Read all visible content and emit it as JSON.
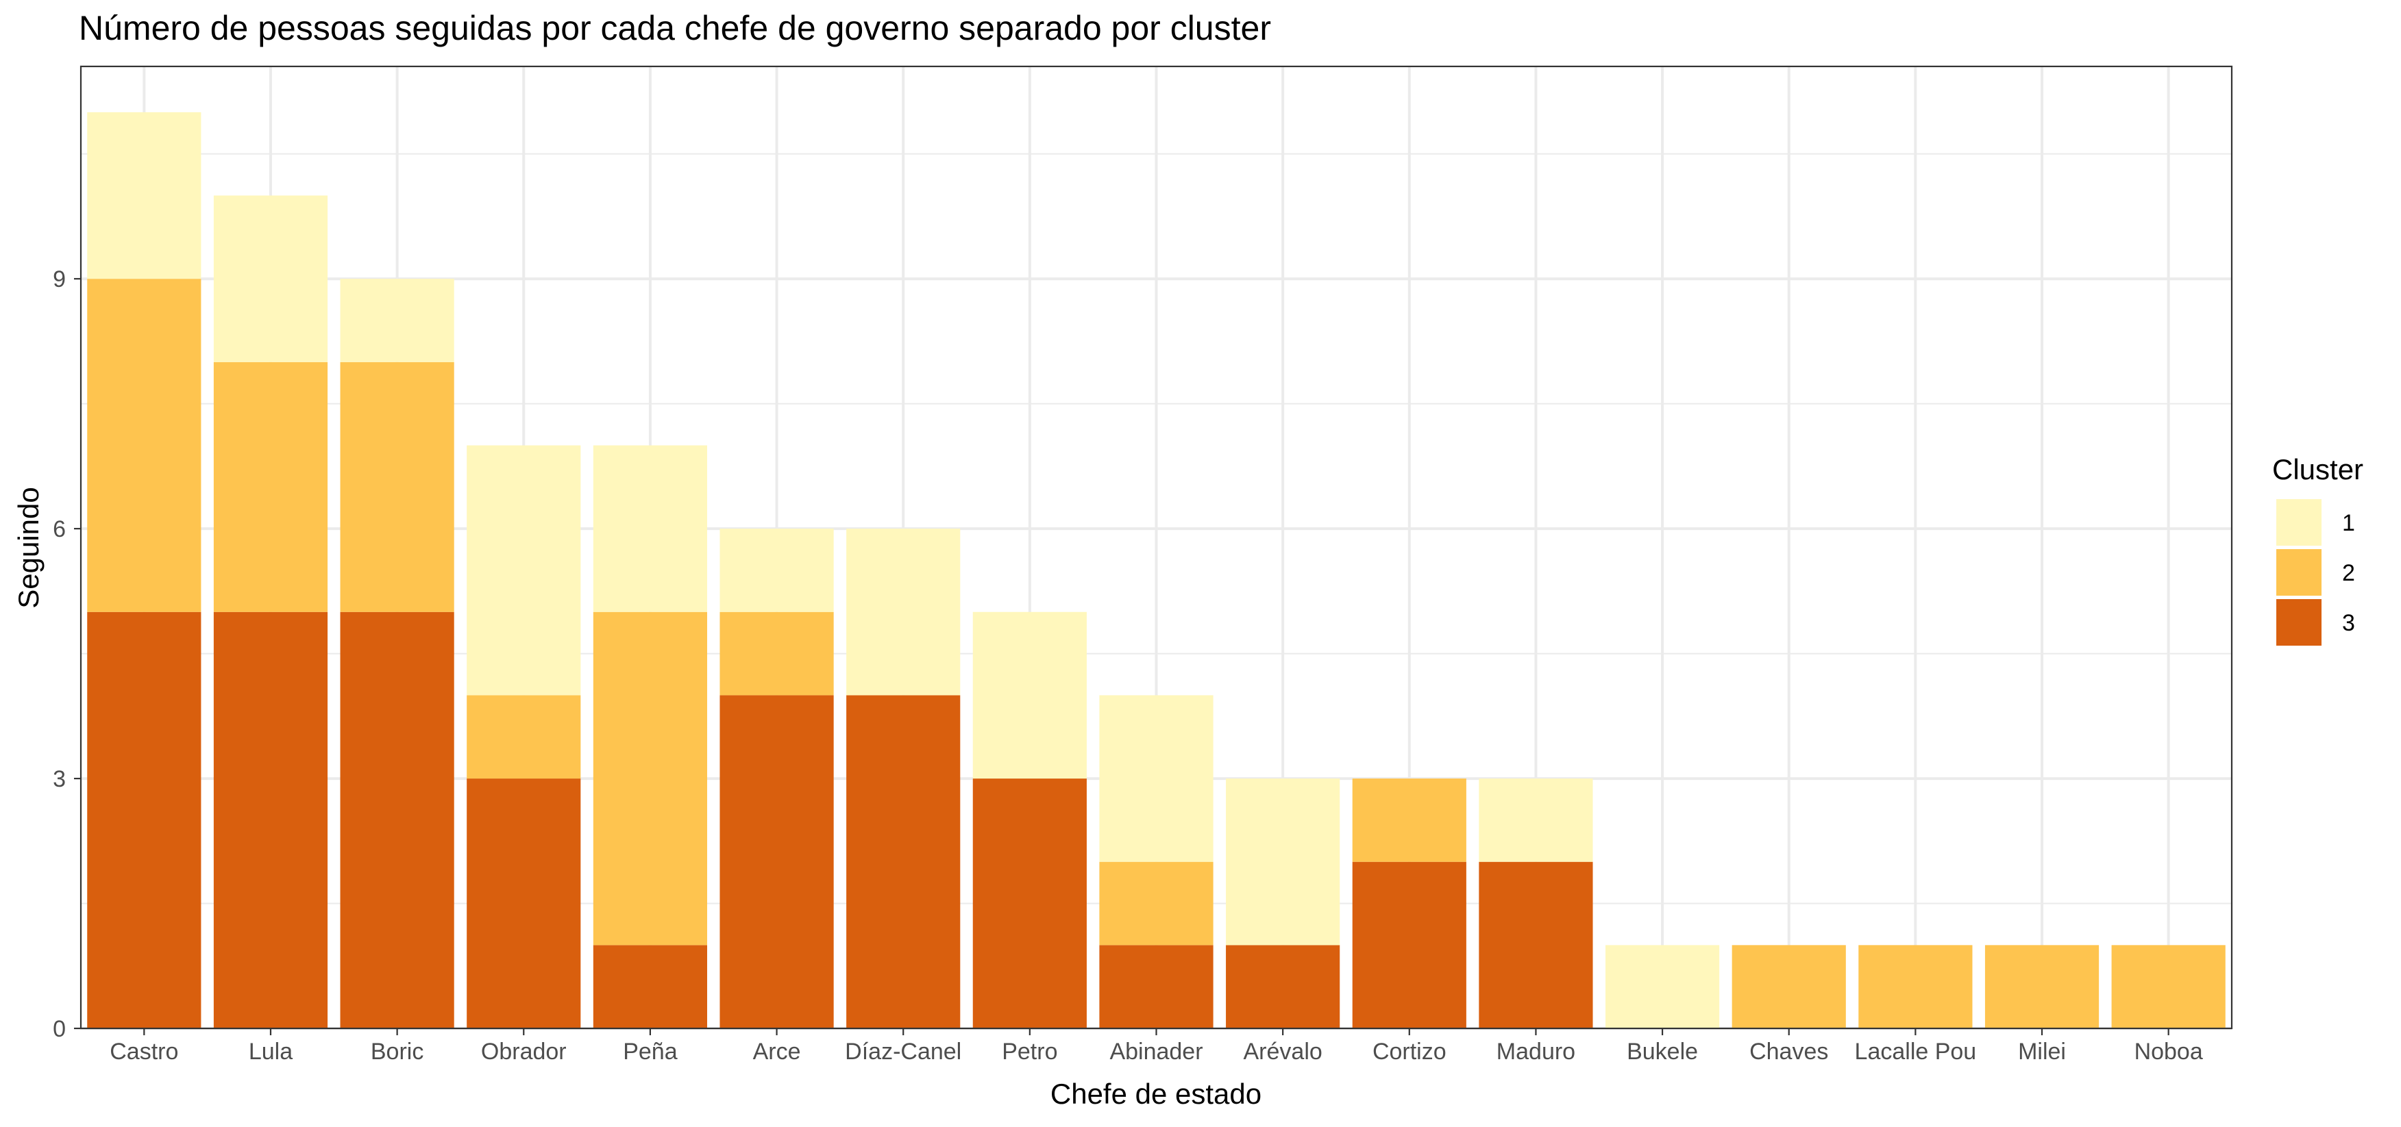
{
  "chart_data": {
    "type": "bar",
    "stacked": true,
    "title": "Número de pessoas seguidas por cada chefe de governo separado por cluster",
    "xlabel": "Chefe de estado",
    "ylabel": "Seguindo",
    "ylim": [
      0,
      11.55
    ],
    "yticks": [
      0,
      3,
      6,
      9
    ],
    "grid": true,
    "legend_position": "right",
    "legend_title": "Cluster",
    "categories": [
      "Castro",
      "Lula",
      "Boric",
      "Obrador",
      "Peña",
      "Arce",
      "Díaz-Canel",
      "Petro",
      "Abinader",
      "Arévalo",
      "Cortizo",
      "Maduro",
      "Bukele",
      "Chaves",
      "Lacalle Pou",
      "Milei",
      "Noboa"
    ],
    "series": [
      {
        "name": "3",
        "color": "#D95F0E",
        "values": [
          5,
          5,
          5,
          3,
          1,
          4,
          4,
          3,
          1,
          1,
          2,
          2,
          0,
          0,
          0,
          0,
          0
        ]
      },
      {
        "name": "2",
        "color": "#FEC44F",
        "values": [
          4,
          3,
          3,
          1,
          4,
          1,
          0,
          0,
          1,
          0,
          1,
          0,
          0,
          1,
          1,
          1,
          1
        ]
      },
      {
        "name": "1",
        "color": "#FFF7BC",
        "values": [
          2,
          2,
          1,
          3,
          2,
          1,
          2,
          2,
          2,
          2,
          0,
          1,
          1,
          0,
          0,
          0,
          0
        ]
      }
    ],
    "legend_order": [
      "1",
      "2",
      "3"
    ]
  }
}
